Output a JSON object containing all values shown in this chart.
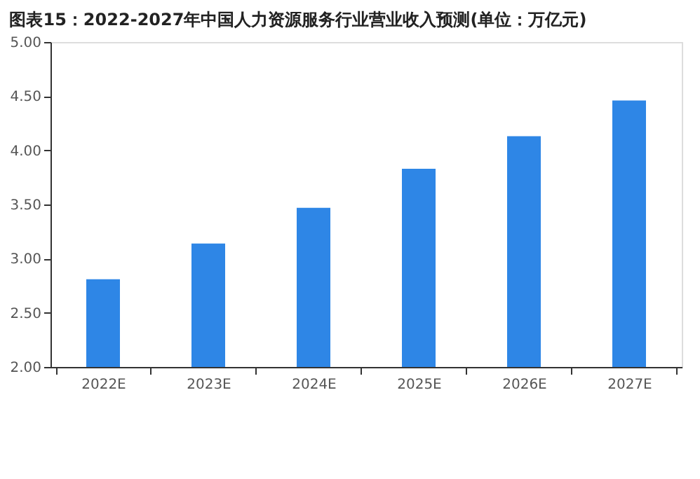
{
  "chart_data": {
    "type": "bar",
    "title": "图表15：2022-2027年中国人力资源服务行业营业收入预测(单位：万亿元)",
    "categories": [
      "2022E",
      "2023E",
      "2024E",
      "2025E",
      "2026E",
      "2027E"
    ],
    "values": [
      2.81,
      3.14,
      3.47,
      3.83,
      4.13,
      4.46
    ],
    "color": "#2e86e6",
    "ylim": [
      2,
      5
    ],
    "yticks": [
      {
        "value": 2,
        "label": "2.00"
      },
      {
        "value": 2.5,
        "label": "2.50"
      },
      {
        "value": 3,
        "label": "3.00"
      },
      {
        "value": 3.5,
        "label": "3.50"
      },
      {
        "value": 4,
        "label": "4.00"
      },
      {
        "value": 4.5,
        "label": "4.50"
      },
      {
        "value": 5,
        "label": "5.00"
      }
    ],
    "grid": false
  }
}
